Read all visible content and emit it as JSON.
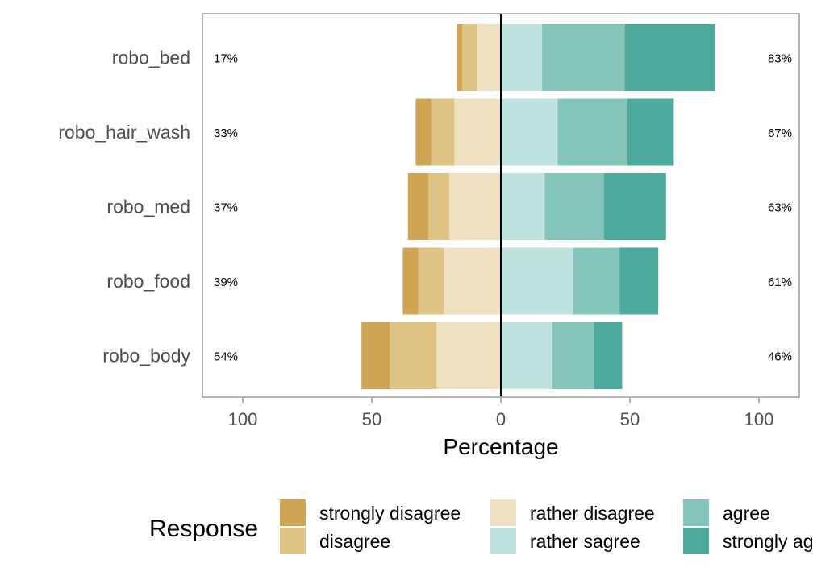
{
  "chart_data": {
    "type": "bar",
    "orientation": "horizontal-diverging",
    "categories": [
      "robo_bed",
      "robo_hair_wash",
      "robo_med",
      "robo_food",
      "robo_body"
    ],
    "series": [
      {
        "name": "strongly disagree",
        "side": "left",
        "color": "#cfa553",
        "values": [
          2,
          6,
          8,
          6,
          11
        ]
      },
      {
        "name": "disagree",
        "side": "left",
        "color": "#dfc486",
        "values": [
          6,
          9,
          8,
          10,
          18
        ]
      },
      {
        "name": "rather disagree",
        "side": "left",
        "color": "#eee0c1",
        "values": [
          9,
          18,
          20,
          22,
          25
        ]
      },
      {
        "name": "rather sagree",
        "side": "right",
        "color": "#bfe3df",
        "values": [
          16,
          22,
          17,
          28,
          20
        ]
      },
      {
        "name": "agree",
        "side": "right",
        "color": "#84c4b9",
        "values": [
          32,
          27,
          23,
          18,
          16
        ]
      },
      {
        "name": "strongly agree",
        "side": "right",
        "color": "#4ca99b",
        "values": [
          35,
          18,
          24,
          15,
          11
        ]
      }
    ],
    "left_labels": [
      "17%",
      "33%",
      "37%",
      "39%",
      "54%"
    ],
    "right_labels": [
      "83%",
      "67%",
      "63%",
      "61%",
      "46%"
    ],
    "xlabel": "Percentage",
    "ylabel": "",
    "xlim": [
      -100,
      100
    ],
    "xticks": [
      -100,
      -50,
      0,
      50,
      100
    ],
    "xtick_labels": [
      "100",
      "50",
      "0",
      "50",
      "100"
    ],
    "legend_title": "Response",
    "legend_position": "bottom",
    "grid": false,
    "zero_line_color": "#000000",
    "panel_border_color": "#b3b3b3"
  }
}
